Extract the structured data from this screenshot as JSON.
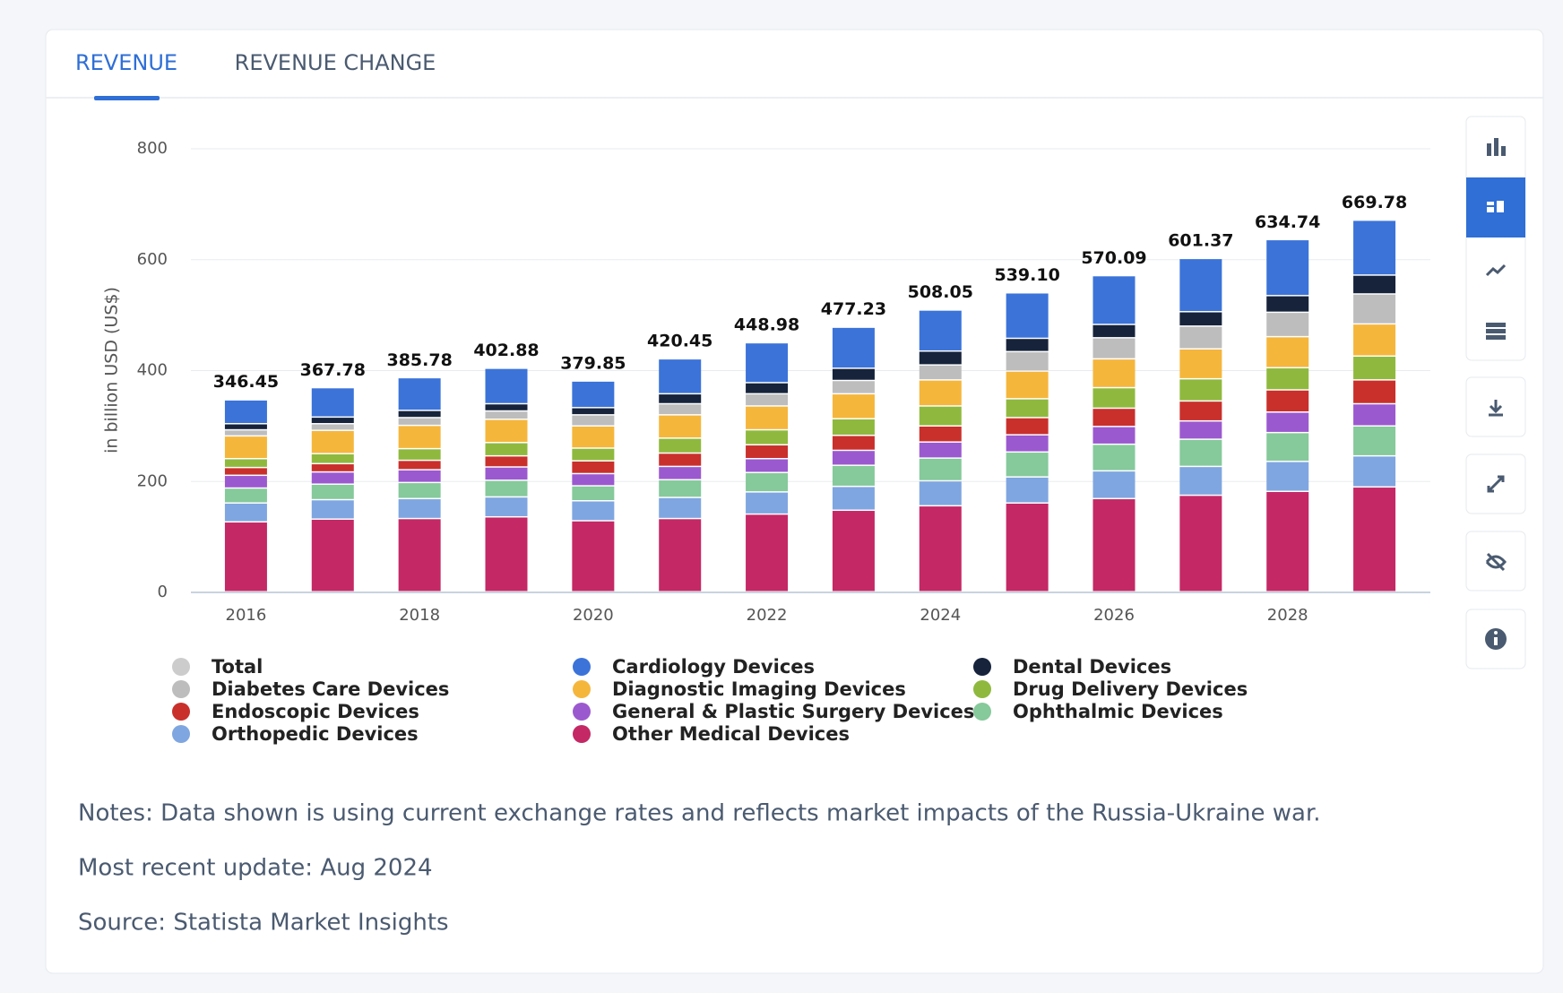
{
  "tabs": [
    "REVENUE",
    "REVENUE CHANGE"
  ],
  "chart_data": {
    "type": "stacked_bar",
    "y_label": "in billion USD (US$)",
    "categories": [
      "2016",
      null,
      "2018",
      null,
      "2020",
      null,
      "2022",
      null,
      "2024",
      null,
      "2026",
      null,
      "2028",
      null
    ],
    "ylim": [
      0,
      800
    ],
    "yticks": [
      0,
      200,
      400,
      600,
      800
    ],
    "grid": true,
    "series": [
      {
        "name": "Total",
        "color": "#cccccc",
        "hidden": true,
        "values": [
          346.45,
          367.78,
          385.78,
          402.88,
          379.85,
          420.45,
          448.98,
          477.23,
          508.05,
          539.1,
          570.09,
          601.37,
          634.74,
          669.78
        ],
        "value_labels": [
          "346.45",
          "367.78",
          "385.78",
          "402.88",
          "379.85",
          "420.45",
          "448.98",
          "477.23",
          "508.05",
          "539.10",
          "570.09",
          "601.37",
          "634.74",
          "669.78"
        ]
      },
      {
        "name": "Cardiology Devices",
        "color": "#3b73d9",
        "values": [
          43,
          53,
          59,
          64,
          48,
          63,
          72,
          74,
          74,
          82,
          88,
          96,
          101,
          99
        ]
      },
      {
        "name": "Dental Devices",
        "color": "#16233b",
        "values": [
          11,
          12,
          13,
          13,
          13,
          18,
          20,
          22,
          25,
          24,
          24,
          26,
          30,
          34
        ]
      },
      {
        "name": "Diabetes Care Devices",
        "color": "#bdbdbd",
        "values": [
          11,
          12,
          14,
          15,
          20,
          20,
          22,
          24,
          27,
          35,
          38,
          41,
          44,
          54
        ]
      },
      {
        "name": "Diagnostic Imaging Devices",
        "color": "#f5b63c",
        "values": [
          41,
          42,
          42,
          42,
          40,
          42,
          43,
          45,
          47,
          50,
          52,
          54,
          56,
          58
        ]
      },
      {
        "name": "Drug Delivery Devices",
        "color": "#8fb93e",
        "values": [
          16,
          18,
          21,
          24,
          23,
          27,
          27,
          30,
          36,
          34,
          37,
          40,
          40,
          43
        ]
      },
      {
        "name": "Endoscopic Devices",
        "color": "#c9302c",
        "values": [
          14,
          15,
          17,
          20,
          23,
          24,
          25,
          27,
          29,
          31,
          33,
          36,
          40,
          43
        ]
      },
      {
        "name": "General & Plastic Surgery Devices",
        "color": "#9b59cf",
        "values": [
          23,
          22,
          23,
          24,
          22,
          24,
          25,
          27,
          29,
          31,
          32,
          33,
          37,
          40
        ]
      },
      {
        "name": "Ophthalmic Devices",
        "color": "#86c99b",
        "values": [
          27,
          28,
          29,
          30,
          27,
          32,
          35,
          38,
          41,
          45,
          48,
          49,
          52,
          54
        ]
      },
      {
        "name": "Orthopedic Devices",
        "color": "#7fa6e0",
        "values": [
          34,
          35,
          36,
          36,
          36,
          38,
          40,
          43,
          45,
          47,
          50,
          52,
          54,
          56
        ]
      },
      {
        "name": "Other Medical Devices",
        "color": "#c42865",
        "values": [
          126,
          131,
          132,
          135,
          128,
          132,
          140,
          147,
          155,
          160,
          168,
          174,
          181,
          189
        ]
      }
    ]
  },
  "notes": [
    "Notes: Data shown is using current exchange rates and reflects market impacts of the Russia-Ukraine war.",
    "Most recent update: Aug 2024",
    "Source: Statista Market Insights"
  ]
}
